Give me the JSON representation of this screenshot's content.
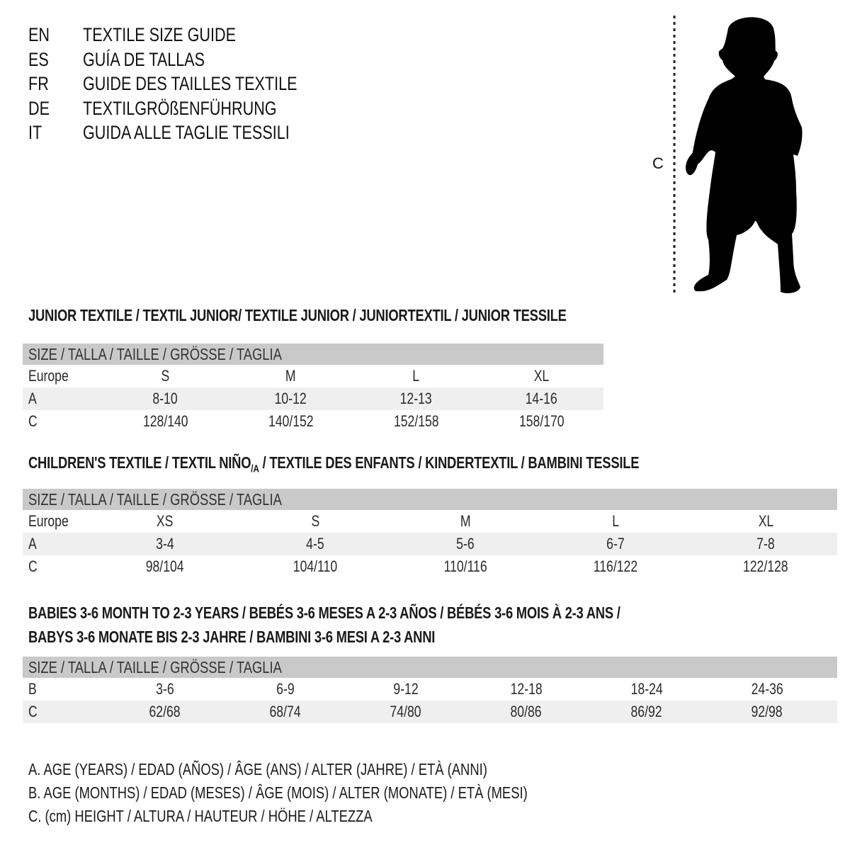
{
  "languages": [
    {
      "code": "EN",
      "title": "TEXTILE SIZE GUIDE"
    },
    {
      "code": "ES",
      "title": "GUÍA DE TALLAS"
    },
    {
      "code": "FR",
      "title": "GUIDE DES TAILLES TEXTILE"
    },
    {
      "code": "DE",
      "title": "TEXTILGRÖßENFÜHRUNG"
    },
    {
      "code": "IT",
      "title": "GUIDA ALLE TAGLIE TESSILI"
    }
  ],
  "figure": {
    "measure_label": "C",
    "icon": "child-silhouette"
  },
  "junior": {
    "heading": "JUNIOR TEXTILE / TEXTIL JUNIOR/ TEXTILE JUNIOR / JUNIORTEXTIL / JUNIOR TESSILE",
    "size_header": "SIZE / TALLA / TAILLE / GRÖSSE / TAGLIA",
    "rows": [
      {
        "label": "Europe",
        "values": [
          "S",
          "M",
          "L",
          "XL"
        ]
      },
      {
        "label": "A",
        "values": [
          "8-10",
          "10-12",
          "12-13",
          "14-16"
        ]
      },
      {
        "label": "C",
        "values": [
          "128/140",
          "140/152",
          "152/158",
          "158/170"
        ]
      }
    ]
  },
  "children": {
    "heading_pre": "CHILDREN'S TEXTILE / TEXTIL NIÑO",
    "heading_sub": "/A",
    "heading_post": " / TEXTILE DES ENFANTS / KINDERTEXTIL / BAMBINI TESSILE",
    "size_header": "SIZE / TALLA / TAILLE / GRÖSSE / TAGLIA",
    "rows": [
      {
        "label": "Europe",
        "values": [
          "XS",
          "S",
          "M",
          "L",
          "XL"
        ]
      },
      {
        "label": "A",
        "values": [
          "3-4",
          "4-5",
          "5-6",
          "6-7",
          "7-8"
        ]
      },
      {
        "label": "C",
        "values": [
          "98/104",
          "104/110",
          "110/116",
          "116/122",
          "122/128"
        ]
      }
    ]
  },
  "babies": {
    "heading_line1": "BABIES 3-6 MONTH TO 2-3 YEARS / BEBÉS 3-6 MESES A 2-3 AÑOS / BÉBÉS 3-6 MOIS À 2-3 ANS /",
    "heading_line2": "BABYS 3-6 MONATE BIS 2-3 JAHRE / BAMBINI 3-6 MESI A 2-3 ANNI",
    "size_header": "SIZE / TALLA / TAILLE / GRÖSSE / TAGLIA",
    "rows": [
      {
        "label": "B",
        "values": [
          "3-6",
          "6-9",
          "9-12",
          "12-18",
          "18-24",
          "24-36"
        ]
      },
      {
        "label": "C",
        "values": [
          "62/68",
          "68/74",
          "74/80",
          "80/86",
          "86/92",
          "92/98"
        ]
      }
    ]
  },
  "legend": [
    "A. AGE (YEARS) / EDAD (AÑOS) / ÂGE (ANS) / ALTER (JAHRE) / ETÀ (ANNI)",
    "B. AGE (MONTHS) / EDAD (MESES) / ÂGE (MOIS) / ALTER (MONATE) / ETÀ (MESI)",
    "C. (cm) HEIGHT / ALTURA / HAUTEUR / HÖHE / ALTEZZA"
  ],
  "colors": {
    "header_bar": "#c9c9c9",
    "alt_row": "#efefef",
    "text": "#111111"
  }
}
